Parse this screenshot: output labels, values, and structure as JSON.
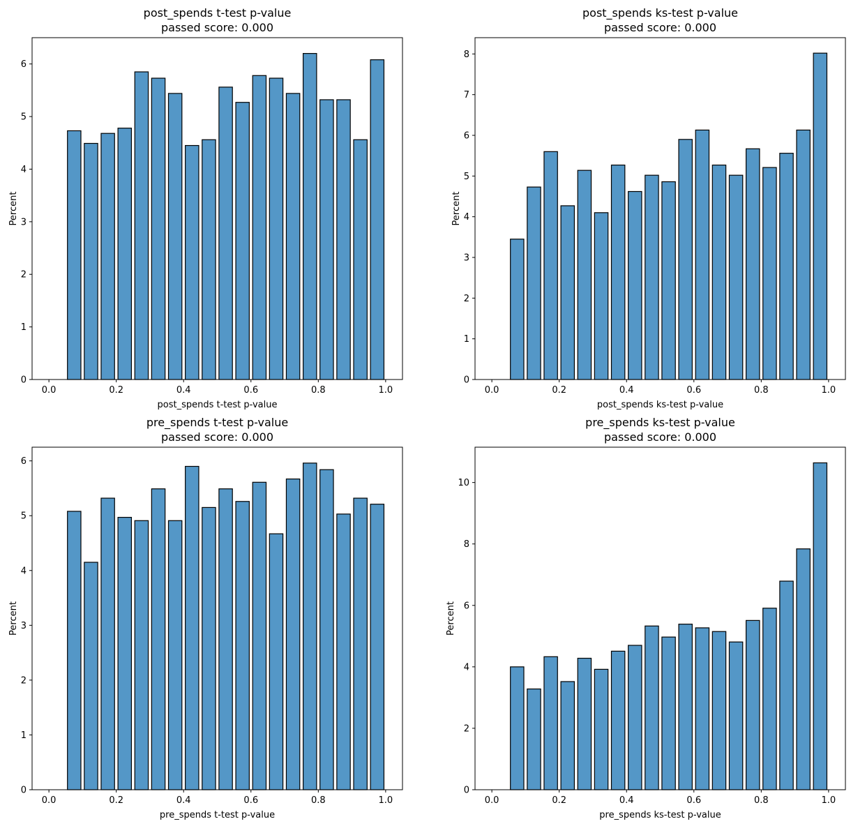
{
  "figure": {
    "bar_color": "#5497c7",
    "edge_color": "#000000"
  },
  "chart_data": [
    {
      "type": "bar",
      "title": "post_spends t-test p-value",
      "subtitle": "passed score: 0.000",
      "xlabel": "post_spends t-test p-value",
      "ylabel": "Percent",
      "xlim": [
        -0.05,
        1.05
      ],
      "ylim": [
        0,
        6.5
      ],
      "xticks": [
        "0.0",
        "0.2",
        "0.4",
        "0.6",
        "0.8",
        "1.0"
      ],
      "xtick_values": [
        0,
        0.2,
        0.4,
        0.6,
        0.8,
        1.0
      ],
      "yticks": [
        "0",
        "1",
        "2",
        "3",
        "4",
        "5",
        "6"
      ],
      "ytick_values": [
        0,
        1,
        2,
        3,
        4,
        5,
        6
      ],
      "bin_centers": [
        0.0,
        0.075,
        0.125,
        0.175,
        0.225,
        0.275,
        0.325,
        0.375,
        0.425,
        0.475,
        0.525,
        0.575,
        0.625,
        0.675,
        0.725,
        0.775,
        0.825,
        0.875,
        0.925,
        0.975
      ],
      "values": [
        0,
        4.73,
        4.49,
        4.68,
        4.78,
        5.85,
        5.73,
        5.44,
        4.45,
        4.56,
        5.56,
        5.27,
        5.78,
        5.73,
        5.44,
        6.2,
        5.32,
        5.32,
        4.56,
        6.08
      ],
      "bar_width": 0.04,
      "grid": false
    },
    {
      "type": "bar",
      "title": "post_spends ks-test p-value",
      "subtitle": "passed score: 0.000",
      "xlabel": "post_spends ks-test p-value",
      "ylabel": "Percent",
      "xlim": [
        -0.05,
        1.05
      ],
      "ylim": [
        0,
        8.4
      ],
      "xticks": [
        "0.0",
        "0.2",
        "0.4",
        "0.6",
        "0.8",
        "1.0"
      ],
      "xtick_values": [
        0,
        0.2,
        0.4,
        0.6,
        0.8,
        1.0
      ],
      "yticks": [
        "0",
        "1",
        "2",
        "3",
        "4",
        "5",
        "6",
        "7",
        "8"
      ],
      "ytick_values": [
        0,
        1,
        2,
        3,
        4,
        5,
        6,
        7,
        8
      ],
      "bin_centers": [
        0.0,
        0.075,
        0.125,
        0.175,
        0.225,
        0.275,
        0.325,
        0.375,
        0.425,
        0.475,
        0.525,
        0.575,
        0.625,
        0.675,
        0.725,
        0.775,
        0.825,
        0.875,
        0.925,
        0.975
      ],
      "values": [
        0,
        3.45,
        4.73,
        5.6,
        4.27,
        5.14,
        4.1,
        5.27,
        4.62,
        5.02,
        4.86,
        5.9,
        6.13,
        5.27,
        5.02,
        5.67,
        5.21,
        5.56,
        6.13,
        8.02
      ],
      "bar_width": 0.04,
      "grid": false
    },
    {
      "type": "bar",
      "title": "pre_spends t-test p-value",
      "subtitle": "passed score: 0.000",
      "xlabel": "pre_spends t-test p-value",
      "ylabel": "Percent",
      "xlim": [
        -0.05,
        1.05
      ],
      "ylim": [
        0,
        6.25
      ],
      "xticks": [
        "0.0",
        "0.2",
        "0.4",
        "0.6",
        "0.8",
        "1.0"
      ],
      "xtick_values": [
        0,
        0.2,
        0.4,
        0.6,
        0.8,
        1.0
      ],
      "yticks": [
        "0",
        "1",
        "2",
        "3",
        "4",
        "5",
        "6"
      ],
      "ytick_values": [
        0,
        1,
        2,
        3,
        4,
        5,
        6
      ],
      "bin_centers": [
        0.0,
        0.075,
        0.125,
        0.175,
        0.225,
        0.275,
        0.325,
        0.375,
        0.425,
        0.475,
        0.525,
        0.575,
        0.625,
        0.675,
        0.725,
        0.775,
        0.825,
        0.875,
        0.925,
        0.975
      ],
      "values": [
        0,
        5.08,
        4.15,
        5.32,
        4.97,
        4.91,
        5.49,
        4.91,
        5.9,
        5.15,
        5.49,
        5.26,
        5.61,
        4.67,
        5.67,
        5.96,
        5.84,
        5.03,
        5.32,
        5.21
      ],
      "bar_width": 0.04,
      "grid": false
    },
    {
      "type": "bar",
      "title": "pre_spends ks-test p-value",
      "subtitle": "passed score: 0.000",
      "xlabel": "pre_spends ks-test p-value",
      "ylabel": "Percent",
      "xlim": [
        -0.05,
        1.05
      ],
      "ylim": [
        0,
        11.15
      ],
      "xticks": [
        "0.0",
        "0.2",
        "0.4",
        "0.6",
        "0.8",
        "1.0"
      ],
      "xtick_values": [
        0,
        0.2,
        0.4,
        0.6,
        0.8,
        1.0
      ],
      "yticks": [
        "0",
        "2",
        "4",
        "6",
        "8",
        "10"
      ],
      "ytick_values": [
        0,
        2,
        4,
        6,
        8,
        10
      ],
      "bin_centers": [
        0.0,
        0.075,
        0.125,
        0.175,
        0.225,
        0.275,
        0.325,
        0.375,
        0.425,
        0.475,
        0.525,
        0.575,
        0.625,
        0.675,
        0.725,
        0.775,
        0.825,
        0.875,
        0.925,
        0.975
      ],
      "values": [
        0,
        4.0,
        3.28,
        4.33,
        3.52,
        4.28,
        3.92,
        4.51,
        4.7,
        5.33,
        4.97,
        5.39,
        5.27,
        5.15,
        4.81,
        5.51,
        5.91,
        6.79,
        7.84,
        10.64
      ],
      "bar_width": 0.04,
      "grid": false
    }
  ]
}
